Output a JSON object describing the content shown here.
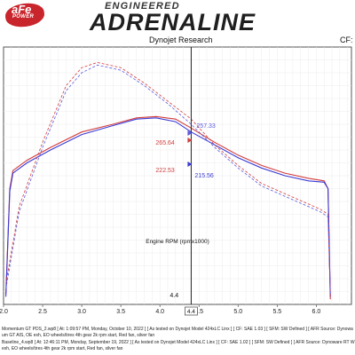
{
  "header": {
    "brand_short": "aFe",
    "brand_power": "POWER",
    "brand_engineered": "ENGINEERED",
    "brand_name": "ADRENALINE",
    "subtitle": "Dynojet Research",
    "cf_label": "CF: S"
  },
  "info_lines": [
    "Momentum GT PDS_2.wp8 [ At: 1:09:57 PM, Monday, October 10, 2022 ] [ As tested on Dynojet Model 424xLC Linx ] [ CF: SAE 1.03 ] [ SFM: SW Defined ] [ AFR Source: Dynowa",
    "um GT AIS, OE exh, EO wheels/tires  4th gear 2k rpm start, Red fan, silver fan",
    "Baseline_4.wp8 [ At: 12:46:11 PM, Monday, September 19, 2022 ] [ As tested on Dynojet Model 424xLC Linx ] [ CF: SAE 1.02 ] [ SFM: SW Defined ] [ AFR Source: Dynoware RT W",
    "exh, EO wheels/tires  4th gear 2k rpm start, Red fan, silver fan"
  ],
  "chart_data": {
    "type": "line",
    "xlabel": "Engine RPM (rpmx1000)",
    "xlim": [
      2.0,
      6.45
    ],
    "ylim": [
      0,
      100
    ],
    "x_ticks": [
      "2.0",
      "2.5",
      "3.0",
      "3.5",
      "4.0",
      "4.5",
      "5.0",
      "5.5",
      "6.0"
    ],
    "grid": true,
    "cursor": {
      "x": 4.4,
      "label": "4.4"
    },
    "annotations": [
      {
        "text": "257.33",
        "color": "#5a5ae0",
        "series": "Momentum GT PDS_2 dashed",
        "x": 4.4
      },
      {
        "text": "265.64",
        "color": "#d23c3c",
        "series": "Baseline_4 dashed",
        "x": 4.4
      },
      {
        "text": "222.53",
        "color": "#d23c3c",
        "series": "Baseline_4 solid",
        "x": 4.4
      },
      {
        "text": "215.56",
        "color": "#3a3ad6",
        "series": "Momentum GT PDS_2 solid",
        "x": 4.4
      }
    ],
    "series": [
      {
        "color": "#d23c3c",
        "style": "solid",
        "points": [
          [
            2.03,
            4
          ],
          [
            2.08,
            45
          ],
          [
            2.12,
            52
          ],
          [
            2.3,
            56
          ],
          [
            2.6,
            61
          ],
          [
            3.0,
            67
          ],
          [
            3.4,
            70
          ],
          [
            3.7,
            72.5
          ],
          [
            3.95,
            73
          ],
          [
            4.2,
            72
          ],
          [
            4.4,
            68.5
          ],
          [
            4.7,
            63
          ],
          [
            5.0,
            58
          ],
          [
            5.3,
            54
          ],
          [
            5.6,
            51
          ],
          [
            5.9,
            49
          ],
          [
            6.1,
            48
          ],
          [
            6.15,
            45
          ],
          [
            6.18,
            2
          ]
        ]
      },
      {
        "color": "#3a3ad6",
        "style": "solid",
        "points": [
          [
            2.03,
            3
          ],
          [
            2.08,
            44
          ],
          [
            2.12,
            51
          ],
          [
            2.3,
            55
          ],
          [
            2.6,
            60
          ],
          [
            3.0,
            66
          ],
          [
            3.4,
            69.5
          ],
          [
            3.7,
            72
          ],
          [
            3.95,
            72.5
          ],
          [
            4.2,
            71
          ],
          [
            4.4,
            67
          ],
          [
            4.7,
            62
          ],
          [
            5.0,
            57
          ],
          [
            5.3,
            53
          ],
          [
            5.6,
            50
          ],
          [
            5.9,
            48
          ],
          [
            6.1,
            47.5
          ],
          [
            6.15,
            45
          ],
          [
            6.18,
            3
          ]
        ]
      },
      {
        "color": "#d23c3c",
        "style": "dashed",
        "points": [
          [
            2.03,
            8
          ],
          [
            2.2,
            38
          ],
          [
            2.5,
            63
          ],
          [
            2.8,
            85
          ],
          [
            3.0,
            92
          ],
          [
            3.2,
            94
          ],
          [
            3.5,
            92
          ],
          [
            3.8,
            86
          ],
          [
            4.1,
            79
          ],
          [
            4.4,
            72
          ],
          [
            4.7,
            62
          ],
          [
            5.0,
            54
          ],
          [
            5.3,
            47
          ],
          [
            5.6,
            43
          ],
          [
            5.9,
            39
          ],
          [
            6.05,
            37
          ],
          [
            6.15,
            35
          ],
          [
            6.18,
            3
          ]
        ]
      },
      {
        "color": "#5a5ae0",
        "style": "dashed",
        "points": [
          [
            2.03,
            6
          ],
          [
            2.2,
            36
          ],
          [
            2.5,
            61
          ],
          [
            2.8,
            83
          ],
          [
            3.0,
            90
          ],
          [
            3.2,
            93
          ],
          [
            3.5,
            91
          ],
          [
            3.8,
            85
          ],
          [
            4.1,
            78
          ],
          [
            4.4,
            70
          ],
          [
            4.7,
            61
          ],
          [
            5.0,
            53
          ],
          [
            5.3,
            46
          ],
          [
            5.6,
            42
          ],
          [
            5.9,
            38
          ],
          [
            6.05,
            36
          ],
          [
            6.15,
            34
          ],
          [
            6.18,
            4
          ]
        ]
      }
    ]
  }
}
